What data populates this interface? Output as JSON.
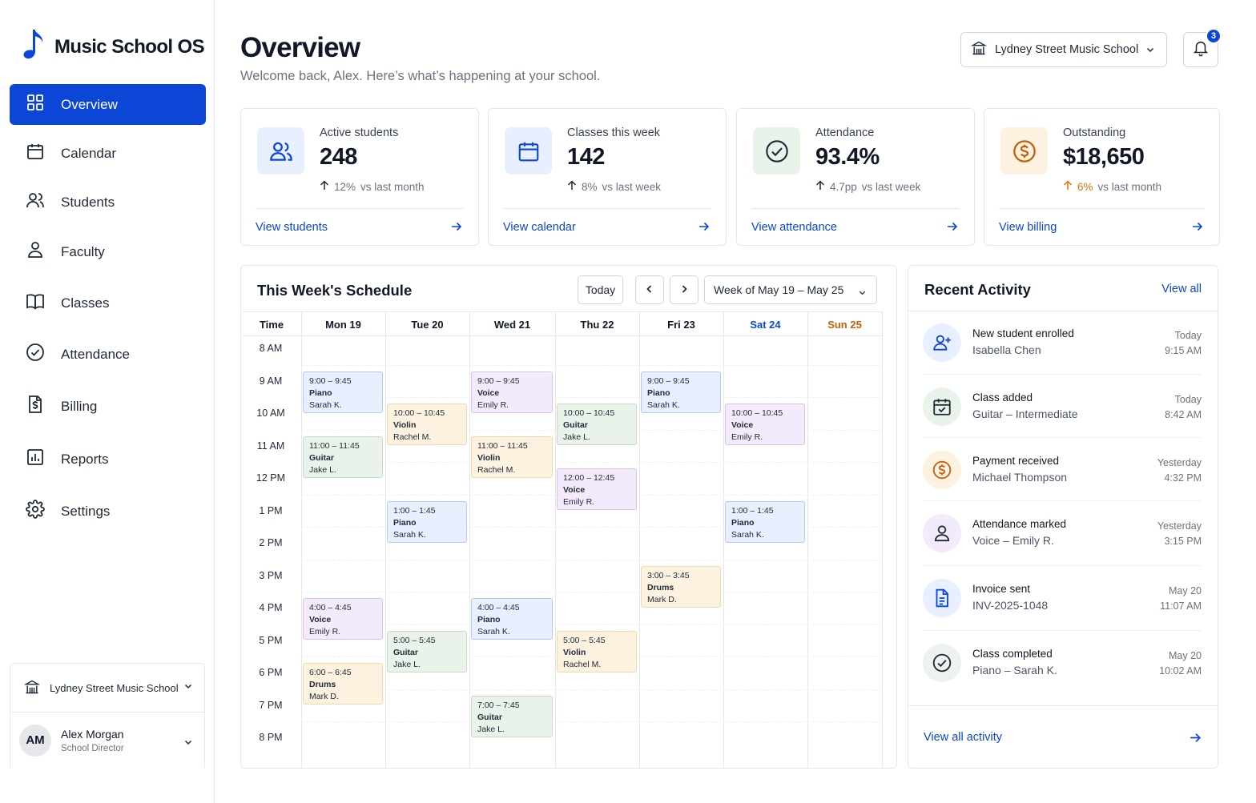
{
  "app": {
    "name": "Music School OS"
  },
  "colors": {
    "accent": "#0b46d6",
    "orange": "#d97706",
    "green": "#16a34a"
  },
  "sidebar": {
    "items": [
      {
        "label": "Overview",
        "icon": "grid-icon",
        "active": true
      },
      {
        "label": "Calendar",
        "icon": "calendar-icon"
      },
      {
        "label": "Students",
        "icon": "users-icon"
      },
      {
        "label": "Faculty",
        "icon": "person-icon"
      },
      {
        "label": "Classes",
        "icon": "book-icon"
      },
      {
        "label": "Attendance",
        "icon": "check-circle-icon"
      },
      {
        "label": "Billing",
        "icon": "invoice-icon"
      },
      {
        "label": "Reports",
        "icon": "bar-chart-icon"
      },
      {
        "label": "Settings",
        "icon": "gear-icon"
      }
    ],
    "school": "Lydney Street Music School",
    "user": {
      "initials": "AM",
      "name": "Alex Morgan",
      "role": "School Director"
    }
  },
  "header": {
    "title": "Overview",
    "subtitle": "Welcome back, Alex. Here’s what’s happening at your school.",
    "school_select": "Lydney Street Music School",
    "notification_count": "3"
  },
  "stats": [
    {
      "label": "Active students",
      "value": "248",
      "trend_value": "12%",
      "trend_rest": "vs last month",
      "link": "View students",
      "icon": "users-icon"
    },
    {
      "label": "Classes this week",
      "value": "142",
      "trend_value": "8%",
      "trend_rest": "vs last week",
      "link": "View calendar",
      "icon": "calendar-icon"
    },
    {
      "label": "Attendance",
      "value": "93.4%",
      "trend_value": "4.7pp",
      "trend_rest": "vs last week",
      "link": "View attendance",
      "icon": "check-circle-icon"
    },
    {
      "label": "Outstanding",
      "value": "$18,650",
      "trend_value": "6%",
      "trend_rest": "vs last month",
      "link": "View billing",
      "icon": "dollar-icon"
    }
  ],
  "schedule": {
    "title": "This Week's Schedule",
    "today_label": "Today",
    "week_label": "Week of May 19 – May 25",
    "time_header": "Time",
    "days": [
      "Mon 19",
      "Tue 20",
      "Wed 21",
      "Thu 22",
      "Fri 23",
      "Sat 24",
      "Sun 25"
    ],
    "hours": [
      "8 AM",
      "9 AM",
      "10 AM",
      "11 AM",
      "12 PM",
      "1 PM",
      "2 PM",
      "3 PM",
      "4 PM",
      "5 PM",
      "6 PM",
      "7 PM",
      "8 PM"
    ],
    "events": [
      {
        "day": 0,
        "start": 9,
        "time": "9:00 – 9:45",
        "name": "Piano",
        "teacher": "Sarah K.",
        "color": "blue"
      },
      {
        "day": 0,
        "start": 11,
        "time": "11:00 – 11:45",
        "name": "Guitar",
        "teacher": "Jake L.",
        "color": "green"
      },
      {
        "day": 0,
        "start": 16,
        "time": "4:00 – 4:45",
        "name": "Voice",
        "teacher": "Emily R.",
        "color": "purple"
      },
      {
        "day": 0,
        "start": 18,
        "time": "6:00 – 6:45",
        "name": "Drums",
        "teacher": "Mark D.",
        "color": "orange"
      },
      {
        "day": 1,
        "start": 10,
        "time": "10:00 – 10:45",
        "name": "Violin",
        "teacher": "Rachel M.",
        "color": "orange"
      },
      {
        "day": 1,
        "start": 13,
        "time": "1:00 – 1:45",
        "name": "Piano",
        "teacher": "Sarah K.",
        "color": "blue"
      },
      {
        "day": 1,
        "start": 17,
        "time": "5:00 – 5:45",
        "name": "Guitar",
        "teacher": "Jake L.",
        "color": "green"
      },
      {
        "day": 2,
        "start": 9,
        "time": "9:00 – 9:45",
        "name": "Voice",
        "teacher": "Emily R.",
        "color": "purple"
      },
      {
        "day": 2,
        "start": 11,
        "time": "11:00 – 11:45",
        "name": "Violin",
        "teacher": "Rachel M.",
        "color": "orange"
      },
      {
        "day": 2,
        "start": 16,
        "time": "4:00 – 4:45",
        "name": "Piano",
        "teacher": "Sarah K.",
        "color": "blue"
      },
      {
        "day": 2,
        "start": 19,
        "time": "7:00 – 7:45",
        "name": "Guitar",
        "teacher": "Jake L.",
        "color": "green"
      },
      {
        "day": 3,
        "start": 10,
        "time": "10:00 – 10:45",
        "name": "Guitar",
        "teacher": "Jake L.",
        "color": "green"
      },
      {
        "day": 3,
        "start": 12,
        "time": "12:00 – 12:45",
        "name": "Voice",
        "teacher": "Emily R.",
        "color": "purple"
      },
      {
        "day": 3,
        "start": 17,
        "time": "5:00 – 5:45",
        "name": "Violin",
        "teacher": "Rachel M.",
        "color": "orange"
      },
      {
        "day": 4,
        "start": 9,
        "time": "9:00 – 9:45",
        "name": "Piano",
        "teacher": "Sarah K.",
        "color": "blue"
      },
      {
        "day": 4,
        "start": 15,
        "time": "3:00 – 3:45",
        "name": "Drums",
        "teacher": "Mark D.",
        "color": "orange"
      },
      {
        "day": 5,
        "start": 10,
        "time": "10:00 – 10:45",
        "name": "Voice",
        "teacher": "Emily R.",
        "color": "purple"
      },
      {
        "day": 5,
        "start": 13,
        "time": "1:00 – 1:45",
        "name": "Piano",
        "teacher": "Sarah K.",
        "color": "blue"
      }
    ]
  },
  "activity": {
    "title": "Recent Activity",
    "view_all": "View all",
    "footer_link": "View all activity",
    "items": [
      {
        "title": "New student enrolled",
        "detail": "Isabella Chen",
        "date": "Today",
        "time": "9:15 AM",
        "icon": "user-plus-icon",
        "tone": "blue"
      },
      {
        "title": "Class added",
        "detail": "Guitar – Intermediate",
        "date": "Today",
        "time": "8:42 AM",
        "icon": "calendar-check-icon",
        "tone": "green"
      },
      {
        "title": "Payment received",
        "detail": "Michael Thompson",
        "date": "Yesterday",
        "time": "4:32 PM",
        "icon": "dollar-icon",
        "tone": "orange"
      },
      {
        "title": "Attendance marked",
        "detail": "Voice – Emily R.",
        "date": "Yesterday",
        "time": "3:15 PM",
        "icon": "person-icon",
        "tone": "purple"
      },
      {
        "title": "Invoice sent",
        "detail": "INV-2025-1048",
        "date": "May 20",
        "time": "11:07 AM",
        "icon": "document-icon",
        "tone": "blue"
      },
      {
        "title": "Class completed",
        "detail": "Piano – Sarah K.",
        "date": "May 20",
        "time": "10:02 AM",
        "icon": "check-circle-icon",
        "tone": "gray"
      }
    ]
  }
}
